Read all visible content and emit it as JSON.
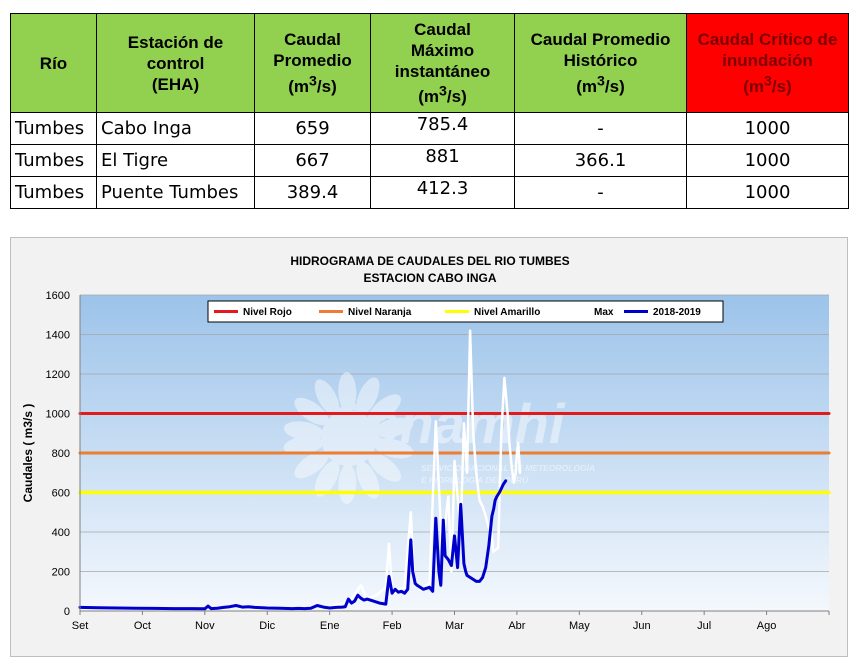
{
  "table": {
    "headers": {
      "rio": "Río",
      "estacion": [
        "Estación de",
        "control",
        "(EHA)"
      ],
      "caudal_promedio": [
        "Caudal",
        "Promedio"
      ],
      "caudal_maximo": [
        "Caudal",
        "Máximo",
        "instantáneo"
      ],
      "caudal_promedio_historico": [
        "Caudal Promedio",
        "Histórico"
      ],
      "caudal_critico": [
        "Caudal Crítico de",
        "inundación"
      ],
      "unit_open": "(m",
      "unit_sup": "3",
      "unit_close": "/s)"
    },
    "rows": [
      {
        "rio": "Tumbes",
        "estacion": "Cabo Inga",
        "promedio": "659",
        "maximo": "785.4",
        "historico": "-",
        "critico": "1000"
      },
      {
        "rio": "Tumbes",
        "estacion": "El Tigre",
        "promedio": "667",
        "maximo": "881",
        "historico": "366.1",
        "critico": "1000"
      },
      {
        "rio": "Tumbes",
        "estacion": "Puente Tumbes",
        "promedio": "389.4",
        "maximo": "412.3",
        "historico": "-",
        "critico": "1000"
      }
    ]
  },
  "chart_data": {
    "type": "line",
    "title": "HIDROGRAMA DE CAUDALES DEL RIO  TUMBES",
    "subtitle": "ESTACION  CABO INGA",
    "ylabel": "Caudales ( m3/s )",
    "xlabel": "",
    "ylim": [
      0,
      1600
    ],
    "yticks": [
      0,
      200,
      400,
      600,
      800,
      1000,
      1200,
      1400,
      1600
    ],
    "categories": [
      "Set",
      "Oct",
      "Nov",
      "Dic",
      "Ene",
      "Feb",
      "Mar",
      "Abr",
      "May",
      "Jun",
      "Jul",
      "Ago"
    ],
    "grid": true,
    "legend_position": "top",
    "watermark": {
      "logo_text": "Senamhi",
      "lines": [
        "SERVICIO NACIONAL DE METEOROLOGÍA",
        "E HIDROLOGÍA DEL PERÚ"
      ]
    },
    "series": [
      {
        "name": "Nivel Rojo",
        "color": "#e31a1c",
        "x": [
          0,
          12
        ],
        "values": [
          1000,
          1000
        ]
      },
      {
        "name": "Nivel Naranja",
        "color": "#ed7d31",
        "x": [
          0,
          12
        ],
        "values": [
          800,
          800
        ]
      },
      {
        "name": "Nivel Amarillo",
        "color": "#ffff00",
        "x": [
          0,
          12
        ],
        "values": [
          600,
          600
        ]
      },
      {
        "name": "Max",
        "color": "#ffffff",
        "x": [
          4.0,
          4.2,
          4.35,
          4.5,
          4.6,
          4.75,
          4.9,
          4.95,
          5.0,
          5.05,
          5.1,
          5.2,
          5.3,
          5.35,
          5.4,
          5.45,
          5.5,
          5.6,
          5.7,
          5.8,
          5.9,
          5.95,
          6.0,
          6.1,
          6.15,
          6.2,
          6.25,
          6.3,
          6.35,
          6.4,
          6.45,
          6.5,
          6.55,
          6.6,
          6.62,
          6.7,
          6.75,
          6.8,
          6.85,
          6.88,
          6.92,
          6.95,
          6.98,
          7.0,
          7.02,
          7.05
        ],
        "values": [
          20,
          40,
          60,
          130,
          60,
          80,
          120,
          340,
          100,
          90,
          110,
          120,
          500,
          160,
          130,
          110,
          120,
          140,
          960,
          300,
          580,
          200,
          760,
          400,
          950,
          700,
          1420,
          900,
          700,
          560,
          530,
          480,
          420,
          390,
          300,
          320,
          900,
          1180,
          1000,
          850,
          720,
          650,
          700,
          800,
          850,
          700
        ]
      },
      {
        "name": "2018-2019",
        "color": "#0000cc",
        "x": [
          0.0,
          0.3,
          0.6,
          0.9,
          1.2,
          1.5,
          1.8,
          2.0,
          2.05,
          2.1,
          2.2,
          2.3,
          2.4,
          2.5,
          2.6,
          2.7,
          2.8,
          3.0,
          3.2,
          3.4,
          3.5,
          3.6,
          3.7,
          3.8,
          3.9,
          4.0,
          4.1,
          4.2,
          4.25,
          4.3,
          4.35,
          4.4,
          4.45,
          4.5,
          4.55,
          4.6,
          4.7,
          4.8,
          4.9,
          4.95,
          5.0,
          5.05,
          5.1,
          5.15,
          5.2,
          5.25,
          5.3,
          5.33,
          5.37,
          5.4,
          5.45,
          5.5,
          5.55,
          5.6,
          5.65,
          5.7,
          5.75,
          5.78,
          5.82,
          5.85,
          5.9,
          5.95,
          6.0,
          6.05,
          6.1,
          6.15,
          6.18,
          6.2,
          6.25,
          6.3,
          6.35,
          6.4,
          6.45,
          6.5,
          6.55,
          6.6,
          6.63,
          6.65,
          6.68,
          6.72,
          6.75,
          6.78,
          6.82
        ],
        "values": [
          18,
          16,
          15,
          14,
          13,
          12,
          12,
          11,
          25,
          12,
          14,
          18,
          22,
          28,
          20,
          22,
          18,
          15,
          14,
          12,
          13,
          12,
          14,
          28,
          20,
          15,
          18,
          20,
          22,
          60,
          40,
          50,
          80,
          65,
          55,
          60,
          50,
          40,
          35,
          175,
          90,
          110,
          95,
          100,
          90,
          110,
          360,
          200,
          140,
          130,
          120,
          110,
          115,
          120,
          100,
          470,
          200,
          130,
          460,
          280,
          260,
          230,
          380,
          220,
          540,
          240,
          200,
          180,
          170,
          160,
          150,
          150,
          170,
          220,
          330,
          480,
          520,
          560,
          580,
          600,
          620,
          640,
          659
        ]
      }
    ]
  }
}
